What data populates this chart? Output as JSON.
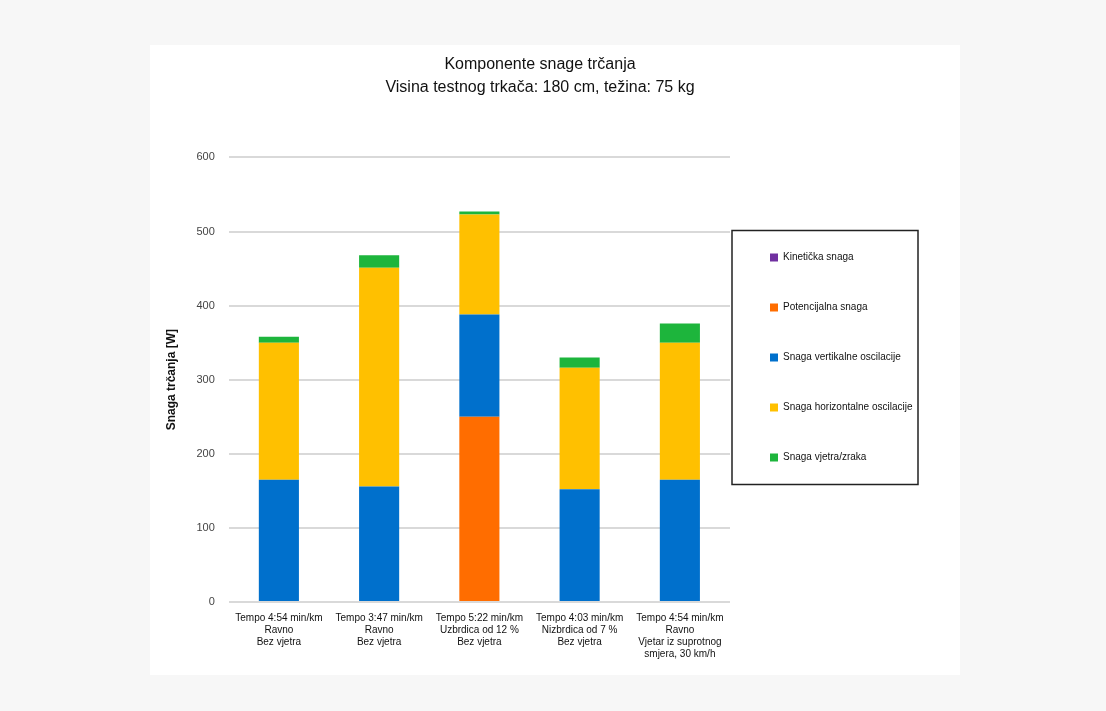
{
  "chart_data": {
    "type": "bar",
    "title": "Komponente snage trčanja",
    "subtitle": "Visina testnog trkača: 180 cm, težina: 75 kg",
    "ylabel": "Snaga trčanja [W]",
    "categories": [
      "Tempo 4:54 min/km\nRavno\nBez vjetra",
      "Tempo 3:47 min/km\nRavno\nBez vjetra",
      "Tempo 5:22 min/km\nUzbrdica od 12 %\nBez vjetra",
      "Tempo 4:03 min/km\nNizbrdica od 7 %\nBez vjetra",
      "Tempo 4:54 min/km\nRavno\nVjetar iz suprotnog smjera, 30 km/h"
    ],
    "series": [
      {
        "name": "Kinetička snaga",
        "color": "#7030a0",
        "values": [
          0,
          0,
          0,
          0,
          0
        ]
      },
      {
        "name": "Potencijalna snaga",
        "color": "#ff6d00",
        "values": [
          0,
          0,
          250,
          0,
          0
        ]
      },
      {
        "name": "Snaga vertikalne oscilacije",
        "color": "#0070cc",
        "values": [
          165,
          156,
          138,
          152,
          165
        ]
      },
      {
        "name": "Snaga horizontalne oscilacije",
        "color": "#ffc000",
        "values": [
          185,
          295,
          135,
          164,
          185
        ]
      },
      {
        "name": "Snaga vjetra/zraka",
        "color": "#1db53c",
        "values": [
          8,
          17,
          4,
          14,
          26
        ]
      }
    ],
    "stacked": true,
    "ylim": [
      0,
      600
    ],
    "yticks": [
      0,
      100,
      200,
      300,
      400,
      500,
      600
    ],
    "grid": "y",
    "legend": "right"
  }
}
